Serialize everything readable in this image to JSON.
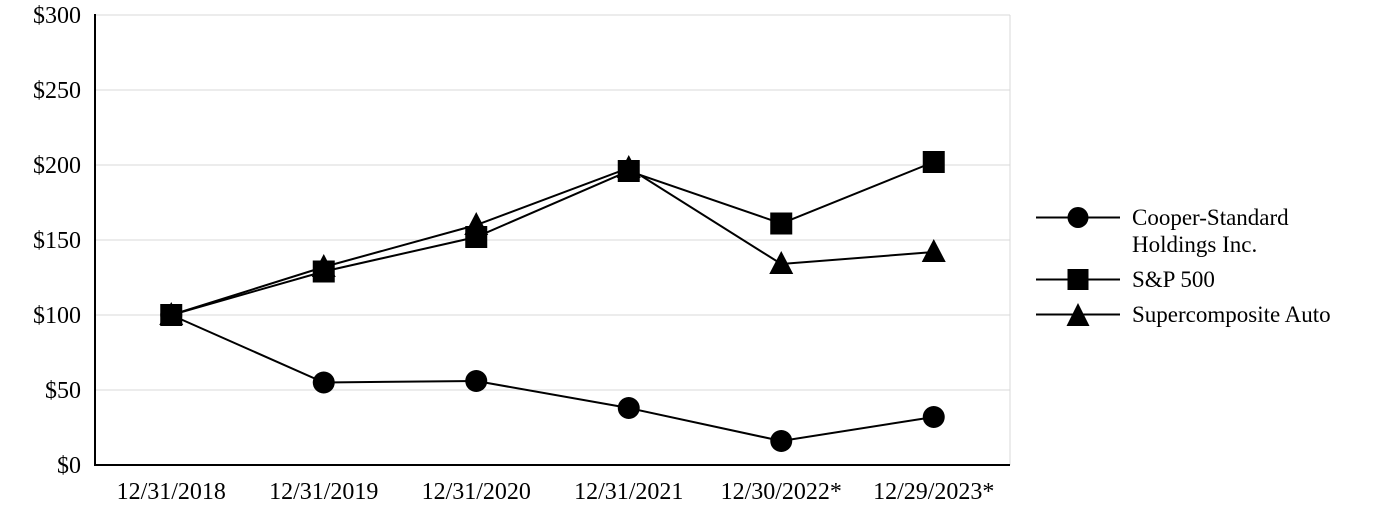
{
  "chart_data": {
    "type": "line",
    "title": "",
    "x": [
      "12/31/2018",
      "12/31/2019",
      "12/31/2020",
      "12/31/2021",
      "12/30/2022*",
      "12/29/2023*"
    ],
    "series": [
      {
        "name": "Cooper-Standard Holdings Inc.",
        "marker": "circle",
        "values": [
          100,
          55,
          56,
          38,
          16,
          32
        ]
      },
      {
        "name": "S&P 500",
        "marker": "square",
        "values": [
          100,
          129,
          152,
          196,
          161,
          202
        ]
      },
      {
        "name": "Supercomposite Auto",
        "marker": "triangle",
        "values": [
          100,
          132,
          160,
          198,
          134,
          142
        ]
      }
    ],
    "ylim": [
      0,
      300
    ],
    "ytick_step": 50,
    "ytick_labels": [
      "$0",
      "$50",
      "$100",
      "$150",
      "$200",
      "$250",
      "$300"
    ],
    "xlabel": "",
    "ylabel": "",
    "grid": "horizontal",
    "legend_position": "right",
    "colors": {
      "line": "#000000",
      "marker": "#000000",
      "axis": "#000000",
      "grid": "#d9d9d9",
      "background": "#ffffff",
      "text": "#000000"
    }
  }
}
